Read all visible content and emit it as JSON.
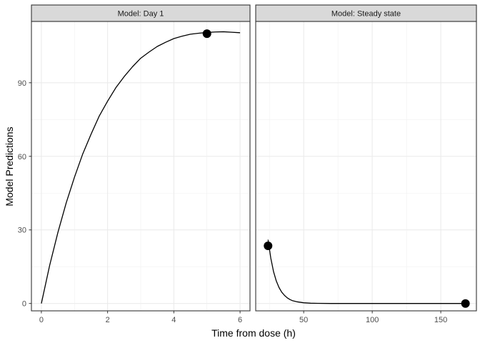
{
  "chart_data": {
    "type": "line",
    "xlabel": "Time from dose (h)",
    "ylabel": "Model Predictions",
    "ylim": [
      -3,
      115
    ],
    "grid": true,
    "yticks": [
      0,
      30,
      60,
      90
    ],
    "panels": [
      {
        "strip": "Model: Day 1",
        "xlim": [
          -0.3,
          6.3
        ],
        "xticks": [
          0,
          2,
          4,
          6
        ],
        "line": {
          "x": [
            0,
            0.25,
            0.5,
            0.75,
            1,
            1.25,
            1.5,
            1.75,
            2,
            2.25,
            2.5,
            2.75,
            3,
            3.25,
            3.5,
            3.75,
            4,
            4.25,
            4.5,
            4.75,
            5,
            5.25,
            5.5,
            5.75,
            6
          ],
          "y": [
            0,
            15.5,
            29,
            41,
            51.5,
            61,
            69,
            76.5,
            82.5,
            88,
            92.5,
            96.5,
            100,
            102.5,
            104.8,
            106.5,
            108,
            109,
            109.8,
            110.2,
            110.5,
            110.7,
            110.8,
            110.6,
            110.4
          ]
        },
        "points": [
          {
            "x": 5,
            "y": 110
          }
        ]
      },
      {
        "strip": "Model: Steady state",
        "xlim": [
          15,
          176
        ],
        "xticks": [
          50,
          100,
          150
        ],
        "line": {
          "x": [
            24,
            26,
            28,
            30,
            32,
            34,
            36,
            38,
            40,
            42,
            45,
            50,
            55,
            60,
            70,
            80,
            100,
            130,
            168
          ],
          "y": [
            26,
            18.5,
            13,
            9.2,
            6.5,
            4.6,
            3.3,
            2.3,
            1.6,
            1.1,
            0.7,
            0.3,
            0.12,
            0.05,
            0.01,
            0,
            0,
            0,
            0
          ]
        },
        "points": [
          {
            "x": 24,
            "y": 23.5
          },
          {
            "x": 168,
            "y": 0
          }
        ]
      }
    ]
  }
}
